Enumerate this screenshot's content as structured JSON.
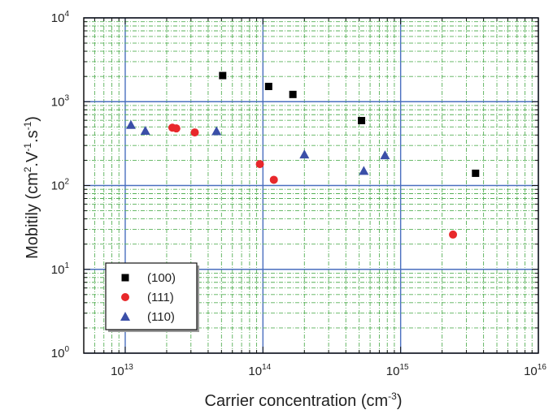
{
  "chart_data": {
    "type": "scatter",
    "x_scale": "log",
    "y_scale": "log",
    "xlim": [
      5000000000000.0,
      1e+16
    ],
    "ylim": [
      1,
      10000
    ],
    "grid": true,
    "grid_colors": {
      "major": "#4a6fbf",
      "minor": "#58b058"
    },
    "xlabel": {
      "text": "Carrier concentration (cm",
      "sup": "-3",
      "tail": ")"
    },
    "ylabel": {
      "parts": [
        "Mobitily (cm",
        "2",
        ".V",
        "-1",
        ".s",
        "-1",
        ")"
      ]
    },
    "x_ticks": [
      {
        "base": "10",
        "exp": "13",
        "value": 10000000000000.0
      },
      {
        "base": "10",
        "exp": "14",
        "value": 100000000000000.0
      },
      {
        "base": "10",
        "exp": "15",
        "value": 1000000000000000.0
      },
      {
        "base": "10",
        "exp": "16",
        "value": 1e+16
      }
    ],
    "y_ticks": [
      {
        "base": "10",
        "exp": "0",
        "value": 1
      },
      {
        "base": "10",
        "exp": "1",
        "value": 10
      },
      {
        "base": "10",
        "exp": "2",
        "value": 100
      },
      {
        "base": "10",
        "exp": "3",
        "value": 1000
      },
      {
        "base": "10",
        "exp": "4",
        "value": 10000
      }
    ],
    "legend_position": "bottom-left",
    "series": [
      {
        "name": "(100)",
        "marker": "square",
        "color": "#000000",
        "points": [
          {
            "x": 51000000000000.0,
            "y": 2050
          },
          {
            "x": 110000000000000.0,
            "y": 1520
          },
          {
            "x": 165000000000000.0,
            "y": 1220
          },
          {
            "x": 520000000000000.0,
            "y": 595
          },
          {
            "x": 3500000000000000.0,
            "y": 140
          }
        ]
      },
      {
        "name": "(111)",
        "marker": "circle",
        "color": "#e8282b",
        "points": [
          {
            "x": 22000000000000.0,
            "y": 490
          },
          {
            "x": 23500000000000.0,
            "y": 480
          },
          {
            "x": 32000000000000.0,
            "y": 430
          },
          {
            "x": 95000000000000.0,
            "y": 180
          },
          {
            "x": 120000000000000.0,
            "y": 117
          },
          {
            "x": 2400000000000000.0,
            "y": 26
          }
        ]
      },
      {
        "name": "(110)",
        "marker": "triangle",
        "color": "#3b4fa8",
        "points": [
          {
            "x": 11000000000000.0,
            "y": 530
          },
          {
            "x": 14000000000000.0,
            "y": 450
          },
          {
            "x": 46000000000000.0,
            "y": 445
          },
          {
            "x": 200000000000000.0,
            "y": 235
          },
          {
            "x": 540000000000000.0,
            "y": 150
          },
          {
            "x": 770000000000000.0,
            "y": 230
          }
        ]
      }
    ]
  }
}
